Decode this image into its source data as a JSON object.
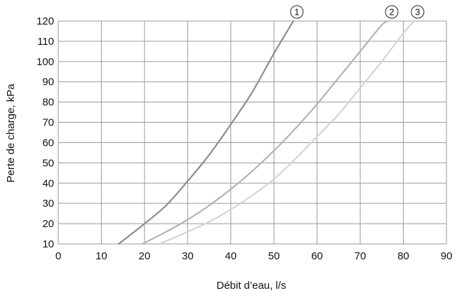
{
  "chart_data": {
    "type": "line",
    "xlabel": "Débit d’eau, l/s",
    "ylabel": "Perte de charge, kPa",
    "xlim": [
      0,
      90
    ],
    "ylim": [
      10,
      120
    ],
    "xticks": [
      "0",
      "10",
      "20",
      "30",
      "40",
      "50",
      "60",
      "70",
      "80",
      "90"
    ],
    "yticks": [
      "10",
      "20",
      "30",
      "40",
      "50",
      "60",
      "70",
      "80",
      "90",
      "100",
      "110",
      "120"
    ],
    "grid": true,
    "series": [
      {
        "name": "1",
        "label": "①",
        "color": "#8c8c8c",
        "x": [
          14,
          20,
          25,
          30,
          35,
          40,
          45,
          50,
          54.5
        ],
        "y": [
          10,
          20,
          29,
          41,
          54,
          69,
          85,
          104,
          120
        ]
      },
      {
        "name": "2",
        "label": "②",
        "color": "#b3b3b3",
        "x": [
          19.5,
          25,
          30,
          35,
          40,
          45,
          50,
          55,
          60,
          65,
          70,
          75,
          76.5
        ],
        "y": [
          10,
          16,
          22,
          29,
          37,
          46,
          56,
          67,
          79,
          92,
          105,
          118,
          120
        ]
      },
      {
        "name": "3",
        "label": "③",
        "color": "#d4d4d4",
        "x": [
          23.5,
          30,
          35,
          40,
          45,
          50,
          55,
          60,
          65,
          70,
          75,
          80,
          82.5
        ],
        "y": [
          10,
          16,
          21,
          27,
          34,
          42,
          52,
          63,
          74,
          87,
          100,
          114,
          120
        ]
      }
    ]
  }
}
